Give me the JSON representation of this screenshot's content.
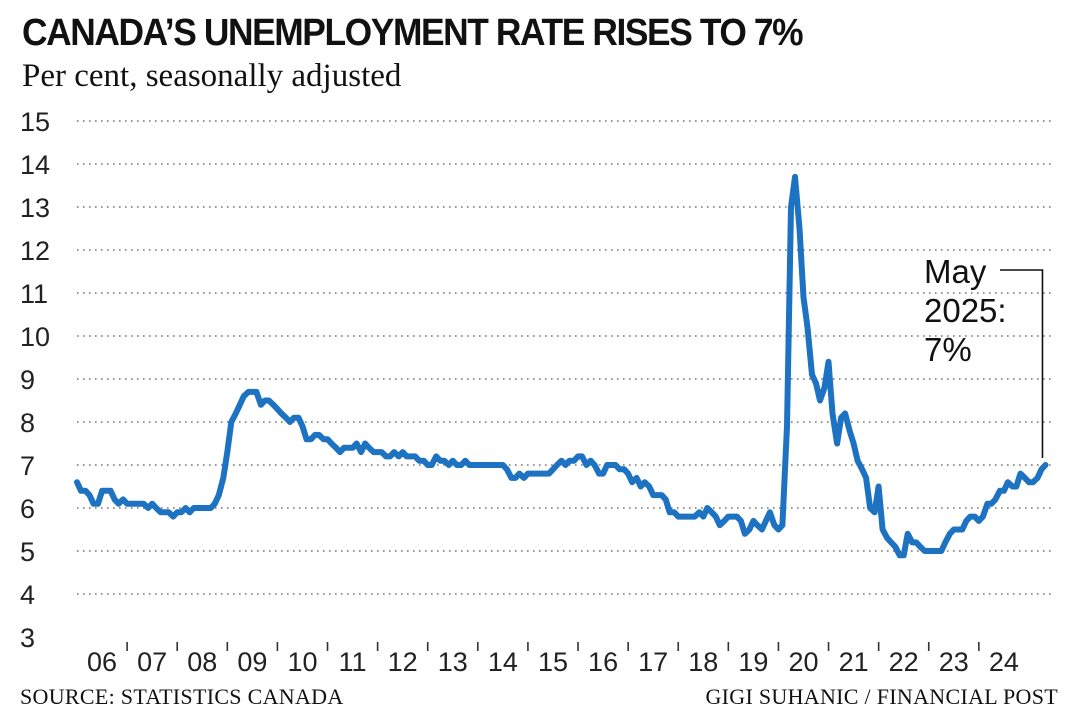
{
  "header": {
    "title": "CANADA’S UNEMPLOYMENT RATE RISES TO 7%",
    "subtitle": "Per cent, seasonally adjusted"
  },
  "footer": {
    "source": "SOURCE: STATISTICS CANADA",
    "credit": "GIGI SUHANIC / FINANCIAL POST"
  },
  "colors": {
    "line": "#1d73c2",
    "grid": "#777777",
    "text": "#111111"
  },
  "chart_data": {
    "type": "line",
    "title": "CANADA’S UNEMPLOYMENT RATE RISES TO 7%",
    "subtitle": "Per cent, seasonally adjusted",
    "xlabel": "",
    "ylabel": "",
    "ylim": [
      3,
      15
    ],
    "xlim": [
      2006,
      2025.5
    ],
    "yticks": [
      3,
      4,
      5,
      6,
      7,
      8,
      9,
      10,
      11,
      12,
      13,
      14,
      15
    ],
    "xtick_labels": [
      "06",
      "07",
      "08",
      "09",
      "10",
      "11",
      "12",
      "13",
      "14",
      "15",
      "16",
      "17",
      "18",
      "19",
      "20",
      "21",
      "22",
      "23",
      "24"
    ],
    "grid": "horizontal dotted",
    "annotation": {
      "lines": [
        "May",
        "2025:",
        "7%"
      ],
      "x": 2025.33,
      "y": 7.0
    },
    "series": [
      {
        "points": [
          [
            2006.0,
            6.6
          ],
          [
            2006.08,
            6.4
          ],
          [
            2006.17,
            6.4
          ],
          [
            2006.25,
            6.3
          ],
          [
            2006.33,
            6.1
          ],
          [
            2006.42,
            6.1
          ],
          [
            2006.5,
            6.4
          ],
          [
            2006.58,
            6.4
          ],
          [
            2006.67,
            6.4
          ],
          [
            2006.75,
            6.2
          ],
          [
            2006.83,
            6.1
          ],
          [
            2006.92,
            6.2
          ],
          [
            2007.0,
            6.1
          ],
          [
            2007.08,
            6.1
          ],
          [
            2007.17,
            6.1
          ],
          [
            2007.25,
            6.1
          ],
          [
            2007.33,
            6.1
          ],
          [
            2007.42,
            6.0
          ],
          [
            2007.5,
            6.1
          ],
          [
            2007.58,
            6.0
          ],
          [
            2007.67,
            5.9
          ],
          [
            2007.75,
            5.9
          ],
          [
            2007.83,
            5.9
          ],
          [
            2007.92,
            5.8
          ],
          [
            2008.0,
            5.9
          ],
          [
            2008.08,
            5.9
          ],
          [
            2008.17,
            6.0
          ],
          [
            2008.25,
            5.9
          ],
          [
            2008.33,
            6.0
          ],
          [
            2008.42,
            6.0
          ],
          [
            2008.5,
            6.0
          ],
          [
            2008.58,
            6.0
          ],
          [
            2008.67,
            6.0
          ],
          [
            2008.75,
            6.1
          ],
          [
            2008.83,
            6.3
          ],
          [
            2008.92,
            6.7
          ],
          [
            2009.0,
            7.3
          ],
          [
            2009.08,
            8.0
          ],
          [
            2009.17,
            8.2
          ],
          [
            2009.25,
            8.4
          ],
          [
            2009.33,
            8.6
          ],
          [
            2009.42,
            8.7
          ],
          [
            2009.5,
            8.7
          ],
          [
            2009.58,
            8.7
          ],
          [
            2009.67,
            8.4
          ],
          [
            2009.75,
            8.5
          ],
          [
            2009.83,
            8.5
          ],
          [
            2009.92,
            8.4
          ],
          [
            2010.0,
            8.3
          ],
          [
            2010.08,
            8.2
          ],
          [
            2010.17,
            8.1
          ],
          [
            2010.25,
            8.0
          ],
          [
            2010.33,
            8.1
          ],
          [
            2010.42,
            8.1
          ],
          [
            2010.5,
            7.9
          ],
          [
            2010.58,
            7.6
          ],
          [
            2010.67,
            7.6
          ],
          [
            2010.75,
            7.7
          ],
          [
            2010.83,
            7.7
          ],
          [
            2010.92,
            7.6
          ],
          [
            2011.0,
            7.6
          ],
          [
            2011.08,
            7.5
          ],
          [
            2011.17,
            7.4
          ],
          [
            2011.25,
            7.3
          ],
          [
            2011.33,
            7.4
          ],
          [
            2011.42,
            7.4
          ],
          [
            2011.5,
            7.4
          ],
          [
            2011.58,
            7.5
          ],
          [
            2011.67,
            7.3
          ],
          [
            2011.75,
            7.5
          ],
          [
            2011.83,
            7.4
          ],
          [
            2011.92,
            7.3
          ],
          [
            2012.0,
            7.3
          ],
          [
            2012.08,
            7.3
          ],
          [
            2012.17,
            7.2
          ],
          [
            2012.25,
            7.2
          ],
          [
            2012.33,
            7.3
          ],
          [
            2012.42,
            7.2
          ],
          [
            2012.5,
            7.3
          ],
          [
            2012.58,
            7.2
          ],
          [
            2012.67,
            7.2
          ],
          [
            2012.75,
            7.2
          ],
          [
            2012.83,
            7.1
          ],
          [
            2012.92,
            7.1
          ],
          [
            2013.0,
            7.0
          ],
          [
            2013.08,
            7.0
          ],
          [
            2013.17,
            7.2
          ],
          [
            2013.25,
            7.1
          ],
          [
            2013.33,
            7.1
          ],
          [
            2013.42,
            7.0
          ],
          [
            2013.5,
            7.1
          ],
          [
            2013.58,
            7.0
          ],
          [
            2013.67,
            7.0
          ],
          [
            2013.75,
            7.1
          ],
          [
            2013.83,
            7.0
          ],
          [
            2013.92,
            7.0
          ],
          [
            2014.0,
            7.0
          ],
          [
            2014.08,
            7.0
          ],
          [
            2014.17,
            7.0
          ],
          [
            2014.25,
            7.0
          ],
          [
            2014.33,
            7.0
          ],
          [
            2014.42,
            7.0
          ],
          [
            2014.5,
            7.0
          ],
          [
            2014.58,
            6.9
          ],
          [
            2014.67,
            6.7
          ],
          [
            2014.75,
            6.7
          ],
          [
            2014.83,
            6.8
          ],
          [
            2014.92,
            6.7
          ],
          [
            2015.0,
            6.8
          ],
          [
            2015.08,
            6.8
          ],
          [
            2015.17,
            6.8
          ],
          [
            2015.25,
            6.8
          ],
          [
            2015.33,
            6.8
          ],
          [
            2015.42,
            6.8
          ],
          [
            2015.5,
            6.9
          ],
          [
            2015.58,
            7.0
          ],
          [
            2015.67,
            7.1
          ],
          [
            2015.75,
            7.0
          ],
          [
            2015.83,
            7.1
          ],
          [
            2015.92,
            7.1
          ],
          [
            2016.0,
            7.2
          ],
          [
            2016.08,
            7.2
          ],
          [
            2016.17,
            7.0
          ],
          [
            2016.25,
            7.1
          ],
          [
            2016.33,
            7.0
          ],
          [
            2016.42,
            6.8
          ],
          [
            2016.5,
            6.8
          ],
          [
            2016.58,
            7.0
          ],
          [
            2016.67,
            7.0
          ],
          [
            2016.75,
            7.0
          ],
          [
            2016.83,
            6.9
          ],
          [
            2016.92,
            6.9
          ],
          [
            2017.0,
            6.8
          ],
          [
            2017.08,
            6.6
          ],
          [
            2017.17,
            6.7
          ],
          [
            2017.25,
            6.5
          ],
          [
            2017.33,
            6.6
          ],
          [
            2017.42,
            6.5
          ],
          [
            2017.5,
            6.3
          ],
          [
            2017.58,
            6.3
          ],
          [
            2017.67,
            6.3
          ],
          [
            2017.75,
            6.2
          ],
          [
            2017.83,
            5.9
          ],
          [
            2017.92,
            5.9
          ],
          [
            2018.0,
            5.8
          ],
          [
            2018.08,
            5.8
          ],
          [
            2018.17,
            5.8
          ],
          [
            2018.25,
            5.8
          ],
          [
            2018.33,
            5.8
          ],
          [
            2018.42,
            5.9
          ],
          [
            2018.5,
            5.8
          ],
          [
            2018.58,
            6.0
          ],
          [
            2018.67,
            5.9
          ],
          [
            2018.75,
            5.8
          ],
          [
            2018.83,
            5.6
          ],
          [
            2018.92,
            5.7
          ],
          [
            2019.0,
            5.8
          ],
          [
            2019.08,
            5.8
          ],
          [
            2019.17,
            5.8
          ],
          [
            2019.25,
            5.7
          ],
          [
            2019.33,
            5.4
          ],
          [
            2019.42,
            5.5
          ],
          [
            2019.5,
            5.7
          ],
          [
            2019.58,
            5.6
          ],
          [
            2019.67,
            5.5
          ],
          [
            2019.75,
            5.7
          ],
          [
            2019.83,
            5.9
          ],
          [
            2019.92,
            5.6
          ],
          [
            2020.0,
            5.5
          ],
          [
            2020.08,
            5.6
          ],
          [
            2020.17,
            7.9
          ],
          [
            2020.25,
            13.0
          ],
          [
            2020.33,
            13.7
          ],
          [
            2020.42,
            12.5
          ],
          [
            2020.5,
            10.9
          ],
          [
            2020.58,
            10.2
          ],
          [
            2020.67,
            9.1
          ],
          [
            2020.75,
            8.9
          ],
          [
            2020.83,
            8.5
          ],
          [
            2020.92,
            8.8
          ],
          [
            2021.0,
            9.4
          ],
          [
            2021.08,
            8.2
          ],
          [
            2021.17,
            7.5
          ],
          [
            2021.25,
            8.1
          ],
          [
            2021.33,
            8.2
          ],
          [
            2021.42,
            7.8
          ],
          [
            2021.5,
            7.5
          ],
          [
            2021.58,
            7.1
          ],
          [
            2021.67,
            6.9
          ],
          [
            2021.75,
            6.7
          ],
          [
            2021.83,
            6.0
          ],
          [
            2021.92,
            5.9
          ],
          [
            2022.0,
            6.5
          ],
          [
            2022.08,
            5.5
          ],
          [
            2022.17,
            5.3
          ],
          [
            2022.25,
            5.2
          ],
          [
            2022.33,
            5.1
          ],
          [
            2022.42,
            4.9
          ],
          [
            2022.5,
            4.9
          ],
          [
            2022.58,
            5.4
          ],
          [
            2022.67,
            5.2
          ],
          [
            2022.75,
            5.2
          ],
          [
            2022.83,
            5.1
          ],
          [
            2022.92,
            5.0
          ],
          [
            2023.0,
            5.0
          ],
          [
            2023.08,
            5.0
          ],
          [
            2023.17,
            5.0
          ],
          [
            2023.25,
            5.0
          ],
          [
            2023.33,
            5.2
          ],
          [
            2023.42,
            5.4
          ],
          [
            2023.5,
            5.5
          ],
          [
            2023.58,
            5.5
          ],
          [
            2023.67,
            5.5
          ],
          [
            2023.75,
            5.7
          ],
          [
            2023.83,
            5.8
          ],
          [
            2023.92,
            5.8
          ],
          [
            2024.0,
            5.7
          ],
          [
            2024.08,
            5.8
          ],
          [
            2024.17,
            6.1
          ],
          [
            2024.25,
            6.1
          ],
          [
            2024.33,
            6.2
          ],
          [
            2024.42,
            6.4
          ],
          [
            2024.5,
            6.4
          ],
          [
            2024.58,
            6.6
          ],
          [
            2024.67,
            6.5
          ],
          [
            2024.75,
            6.5
          ],
          [
            2024.83,
            6.8
          ],
          [
            2024.92,
            6.7
          ],
          [
            2025.0,
            6.6
          ],
          [
            2025.08,
            6.6
          ],
          [
            2025.17,
            6.7
          ],
          [
            2025.25,
            6.9
          ],
          [
            2025.33,
            7.0
          ]
        ]
      }
    ]
  }
}
